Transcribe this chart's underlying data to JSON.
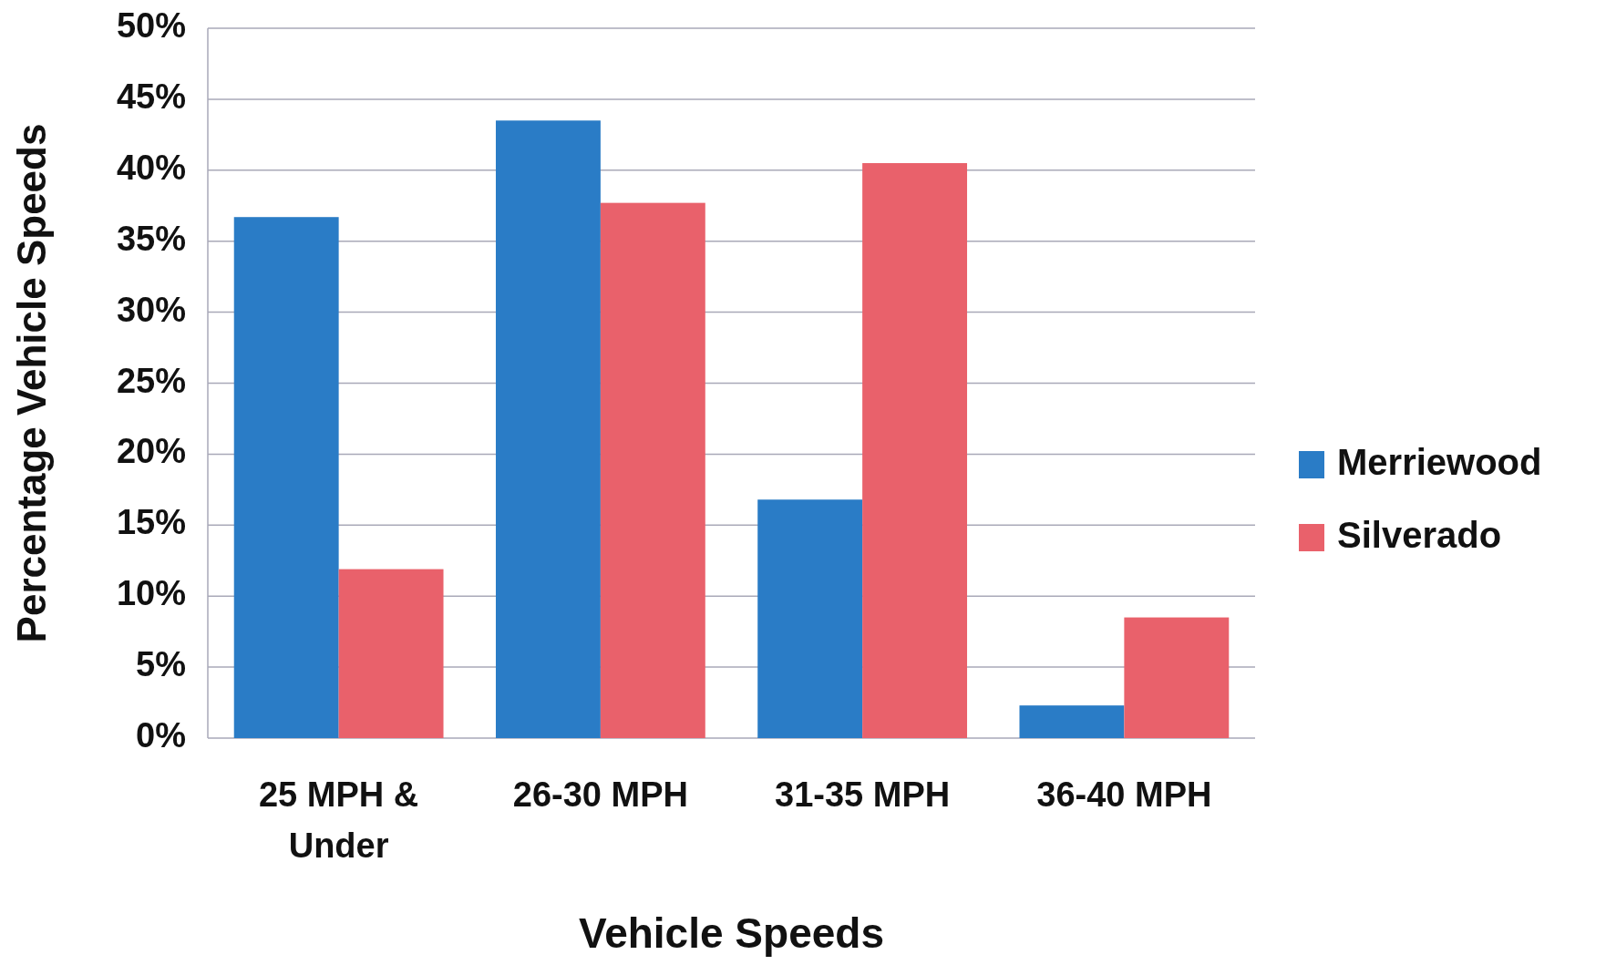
{
  "chart_data": {
    "type": "bar",
    "xlabel": "Vehicle Speeds",
    "ylabel": "Percentage Vehicle Speeds",
    "categories": [
      "25 MPH & Under",
      "26-30 MPH",
      "31-35 MPH",
      "36-40 MPH"
    ],
    "series": [
      {
        "name": "Merriewood",
        "color": "#2a7cc6",
        "values": [
          36.7,
          43.5,
          16.8,
          2.3
        ]
      },
      {
        "name": "Silverado",
        "color": "#e9616b",
        "values": [
          11.9,
          37.7,
          40.5,
          8.5
        ]
      }
    ],
    "ylim": [
      0,
      50
    ],
    "yticks": [
      {
        "value": 0,
        "label": "0%"
      },
      {
        "value": 5,
        "label": "5%"
      },
      {
        "value": 10,
        "label": "10%"
      },
      {
        "value": 15,
        "label": "15%"
      },
      {
        "value": 20,
        "label": "20%"
      },
      {
        "value": 25,
        "label": "25%"
      },
      {
        "value": 30,
        "label": "30%"
      },
      {
        "value": 35,
        "label": "35%"
      },
      {
        "value": 40,
        "label": "40%"
      },
      {
        "value": 45,
        "label": "45%"
      },
      {
        "value": 50,
        "label": "50%"
      }
    ],
    "grid": "y",
    "legend": "right"
  }
}
